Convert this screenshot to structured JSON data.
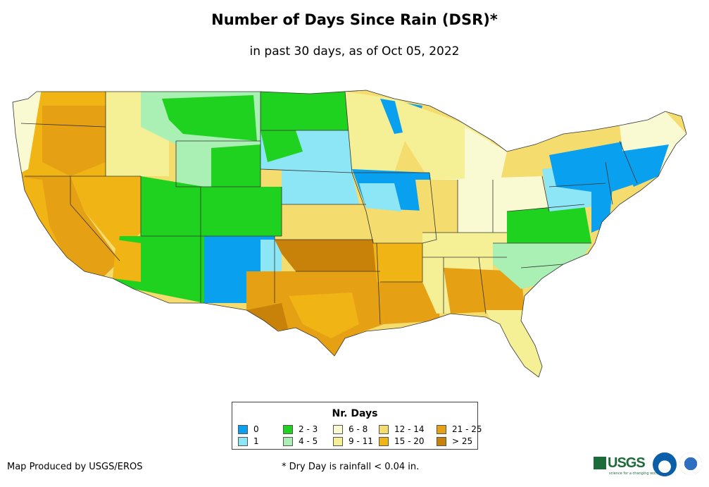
{
  "header": {
    "title": "Number of Days Since Rain (DSR)*",
    "subtitle": "in past 30 days, as of Oct 05, 2022"
  },
  "legend": {
    "title": "Nr. Days",
    "items": [
      {
        "label": "0",
        "color": "#0aa0f0"
      },
      {
        "label": "1",
        "color": "#8ce6f5"
      },
      {
        "label": "2 - 3",
        "color": "#1fd21f"
      },
      {
        "label": "4 - 5",
        "color": "#aaf0b4"
      },
      {
        "label": "6 - 8",
        "color": "#fafad2"
      },
      {
        "label": "9 - 11",
        "color": "#f5f096"
      },
      {
        "label": "12 - 14",
        "color": "#f5dc6e"
      },
      {
        "label": "15 - 20",
        "color": "#f0b414"
      },
      {
        "label": "21 - 25",
        "color": "#e6a014"
      },
      {
        "label": "> 25",
        "color": "#c8820a"
      }
    ]
  },
  "footer": {
    "credit": "Map Produced by USGS/EROS",
    "note": "* Dry Day is rainfall < 0.04 in."
  },
  "logos": {
    "usgs": "USGS",
    "usgs_tagline": "science for a changing world",
    "noaa": "NOAA",
    "nws": "NWS"
  }
}
